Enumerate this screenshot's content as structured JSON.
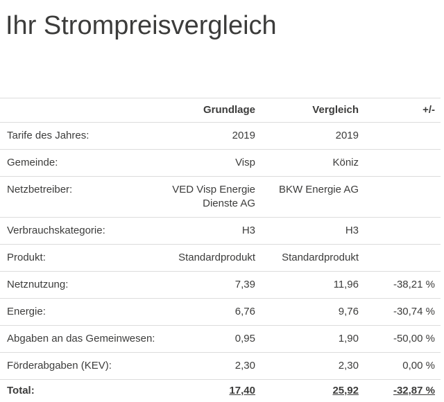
{
  "page": {
    "title": "Ihr Strompreisvergleich"
  },
  "colors": {
    "text": "#3c3c3b",
    "divider": "#dcdcdc",
    "background": "#ffffff"
  },
  "table": {
    "headers": {
      "label": "",
      "base": "Grundlage",
      "compare": "Vergleich",
      "diff": "+/-"
    },
    "rows": [
      {
        "label": "Tarife des Jahres:",
        "base": "2019",
        "compare": "2019",
        "diff": ""
      },
      {
        "label": "Gemeinde:",
        "base": "Visp",
        "compare": "Köniz",
        "diff": ""
      },
      {
        "label": "Netzbetreiber:",
        "base": "VED Visp Energie Dienste AG",
        "compare": "BKW Energie AG",
        "diff": ""
      },
      {
        "label": "Verbrauchskategorie:",
        "base": "H3",
        "compare": "H3",
        "diff": ""
      },
      {
        "label": "Produkt:",
        "base": "Standardprodukt",
        "compare": "Standardprodukt",
        "diff": ""
      },
      {
        "label": "Netznutzung:",
        "base": "7,39",
        "compare": "11,96",
        "diff": "-38,21 %"
      },
      {
        "label": "Energie:",
        "base": "6,76",
        "compare": "9,76",
        "diff": "-30,74 %"
      },
      {
        "label": "Abgaben an das Gemeinwesen:",
        "base": "0,95",
        "compare": "1,90",
        "diff": "-50,00 %"
      },
      {
        "label": "Förderabgaben (KEV):",
        "base": "2,30",
        "compare": "2,30",
        "diff": "0,00 %"
      }
    ],
    "total": {
      "label": "Total:",
      "base": "17,40",
      "compare": "25,92",
      "diff": "-32,87 %"
    }
  }
}
